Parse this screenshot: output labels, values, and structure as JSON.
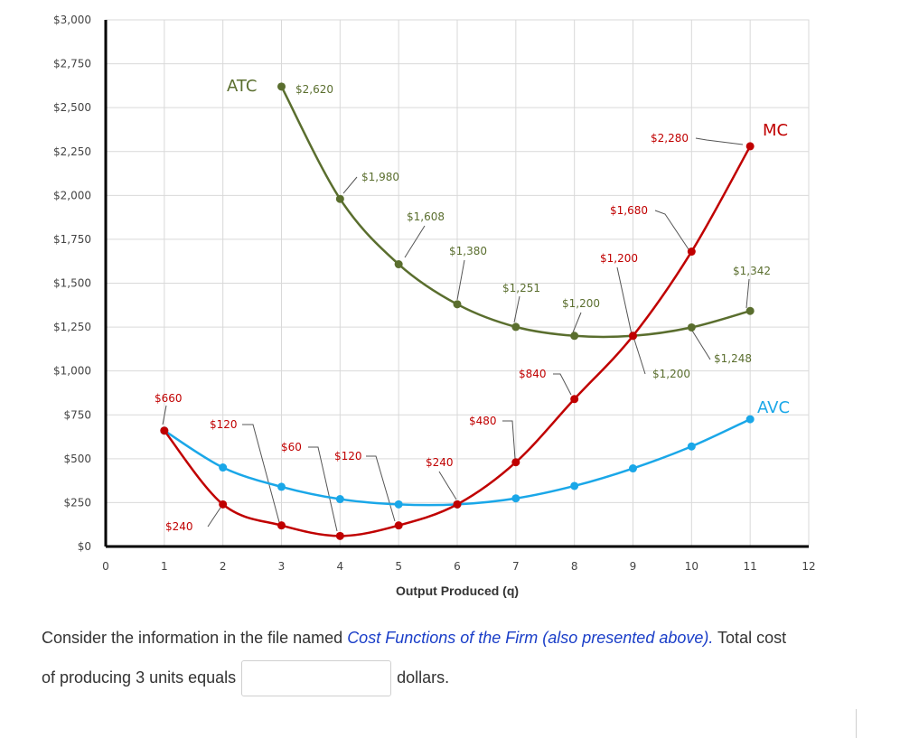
{
  "chart_data": {
    "type": "line",
    "x": [
      0,
      1,
      2,
      3,
      4,
      5,
      6,
      7,
      8,
      9,
      10,
      11,
      12
    ],
    "xlabel": "Output Produced (q)",
    "ylabel": "",
    "xlim": [
      0,
      12
    ],
    "ylim": [
      0,
      3000
    ],
    "yticks": [
      0,
      250,
      500,
      750,
      1000,
      1250,
      1500,
      1750,
      2000,
      2250,
      2500,
      2750,
      3000
    ],
    "ytick_labels": [
      "$0",
      "$250",
      "$500",
      "$750",
      "$1,000",
      "$1,250",
      "$1,500",
      "$1,750",
      "$2,000",
      "$2,250",
      "$2,500",
      "$2,750",
      "$3,000"
    ],
    "xtick_labels": [
      "0",
      "1",
      "2",
      "3",
      "4",
      "5",
      "6",
      "7",
      "8",
      "9",
      "10",
      "11",
      "12"
    ],
    "grid": true,
    "series": [
      {
        "name": "ATC",
        "color": "#5a6e2e",
        "label": "ATC",
        "points": [
          [
            3,
            2620
          ],
          [
            4,
            1980
          ],
          [
            5,
            1608
          ],
          [
            6,
            1380
          ],
          [
            7,
            1251
          ],
          [
            8,
            1200
          ],
          [
            9,
            1200
          ],
          [
            10,
            1248
          ],
          [
            11,
            1342
          ]
        ]
      },
      {
        "name": "MC",
        "color": "#c00000",
        "label": "MC",
        "points": [
          [
            1,
            660
          ],
          [
            2,
            240
          ],
          [
            3,
            120
          ],
          [
            4,
            60
          ],
          [
            5,
            120
          ],
          [
            6,
            240
          ],
          [
            7,
            480
          ],
          [
            8,
            840
          ],
          [
            9,
            1200
          ],
          [
            10,
            1680
          ],
          [
            11,
            2280
          ]
        ]
      },
      {
        "name": "AVC",
        "color": "#1aa7e8",
        "label": "AVC",
        "points": [
          [
            1,
            660
          ],
          [
            2,
            450
          ],
          [
            3,
            340
          ],
          [
            4,
            270
          ],
          [
            5,
            240
          ],
          [
            6,
            240
          ],
          [
            7,
            274
          ],
          [
            8,
            345
          ],
          [
            9,
            445
          ],
          [
            10,
            570
          ],
          [
            11,
            725
          ]
        ]
      }
    ],
    "annotations": [
      {
        "text": "$2,620",
        "series": "ATC"
      },
      {
        "text": "$1,980",
        "series": "ATC"
      },
      {
        "text": "$1,608",
        "series": "ATC"
      },
      {
        "text": "$1,380",
        "series": "ATC"
      },
      {
        "text": "$1,251",
        "series": "ATC"
      },
      {
        "text": "$1,200",
        "series": "ATC"
      },
      {
        "text": "$1,200",
        "series": "ATC"
      },
      {
        "text": "$1,248",
        "series": "ATC"
      },
      {
        "text": "$1,342",
        "series": "ATC"
      },
      {
        "text": "$660",
        "series": "MC"
      },
      {
        "text": "$240",
        "series": "MC"
      },
      {
        "text": "$120",
        "series": "MC"
      },
      {
        "text": "$60",
        "series": "MC"
      },
      {
        "text": "$120",
        "series": "MC"
      },
      {
        "text": "$240",
        "series": "MC"
      },
      {
        "text": "$480",
        "series": "MC"
      },
      {
        "text": "$840",
        "series": "MC"
      },
      {
        "text": "$1,200",
        "series": "MC"
      },
      {
        "text": "$1,680",
        "series": "MC"
      },
      {
        "text": "$2,280",
        "series": "MC"
      }
    ]
  },
  "question": {
    "text_before": "Consider the information in the file named ",
    "link_text": "Cost Functions of the Firm (also presented above).",
    "text_middle": " Total cost of producing 3 units equals",
    "answer_value": "",
    "text_after": "dollars."
  }
}
